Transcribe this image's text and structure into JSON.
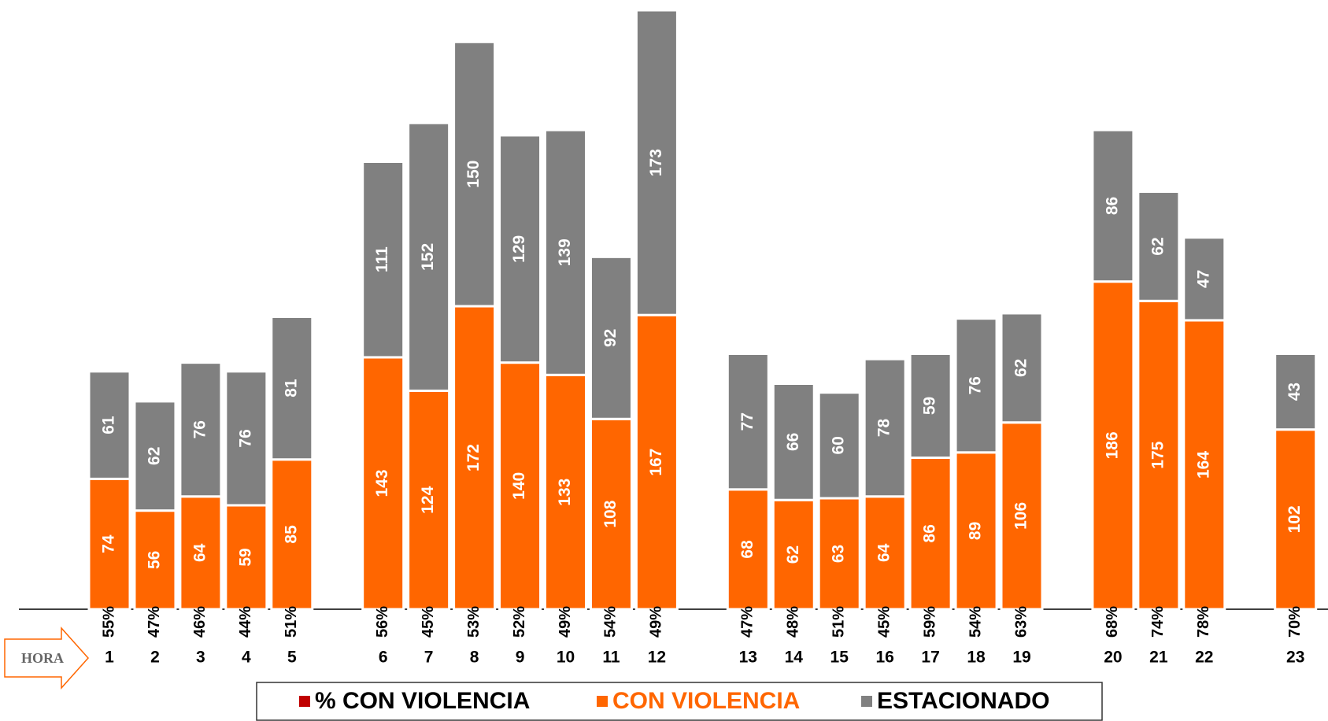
{
  "chart_data": {
    "type": "bar",
    "stacked": true,
    "x_label": "HORA",
    "categories": [
      "1",
      "2",
      "3",
      "4",
      "5",
      null,
      "6",
      "7",
      "8",
      "9",
      "10",
      "11",
      "12",
      null,
      "13",
      "14",
      "15",
      "16",
      "17",
      "18",
      "19",
      null,
      "20",
      "21",
      "22",
      null,
      "23"
    ],
    "series": [
      {
        "name": "% CON VIOLENCIA",
        "color": "#c00000",
        "role": "label",
        "values": [
          55,
          47,
          46,
          44,
          51,
          null,
          56,
          45,
          53,
          52,
          49,
          54,
          49,
          null,
          47,
          48,
          51,
          45,
          59,
          54,
          63,
          null,
          68,
          74,
          78,
          null,
          70
        ],
        "value_labels": [
          "55%",
          "47%",
          "46%",
          "44%",
          "51%",
          null,
          "56%",
          "45%",
          "53%",
          "52%",
          "49%",
          "54%",
          "49%",
          null,
          "47%",
          "48%",
          "51%",
          "45%",
          "59%",
          "54%",
          "63%",
          null,
          "68%",
          "74%",
          "78%",
          null,
          "70%"
        ]
      },
      {
        "name": "CON VIOLENCIA",
        "color": "#ff6600",
        "values": [
          74,
          56,
          64,
          59,
          85,
          null,
          143,
          124,
          172,
          140,
          133,
          108,
          167,
          null,
          68,
          62,
          63,
          64,
          86,
          89,
          106,
          null,
          186,
          175,
          164,
          null,
          102
        ]
      },
      {
        "name": "ESTACIONADO",
        "color": "#808080",
        "values": [
          61,
          62,
          76,
          76,
          81,
          null,
          111,
          152,
          150,
          129,
          139,
          92,
          173,
          null,
          77,
          66,
          60,
          78,
          59,
          76,
          62,
          null,
          86,
          62,
          47,
          null,
          43
        ]
      }
    ]
  }
}
